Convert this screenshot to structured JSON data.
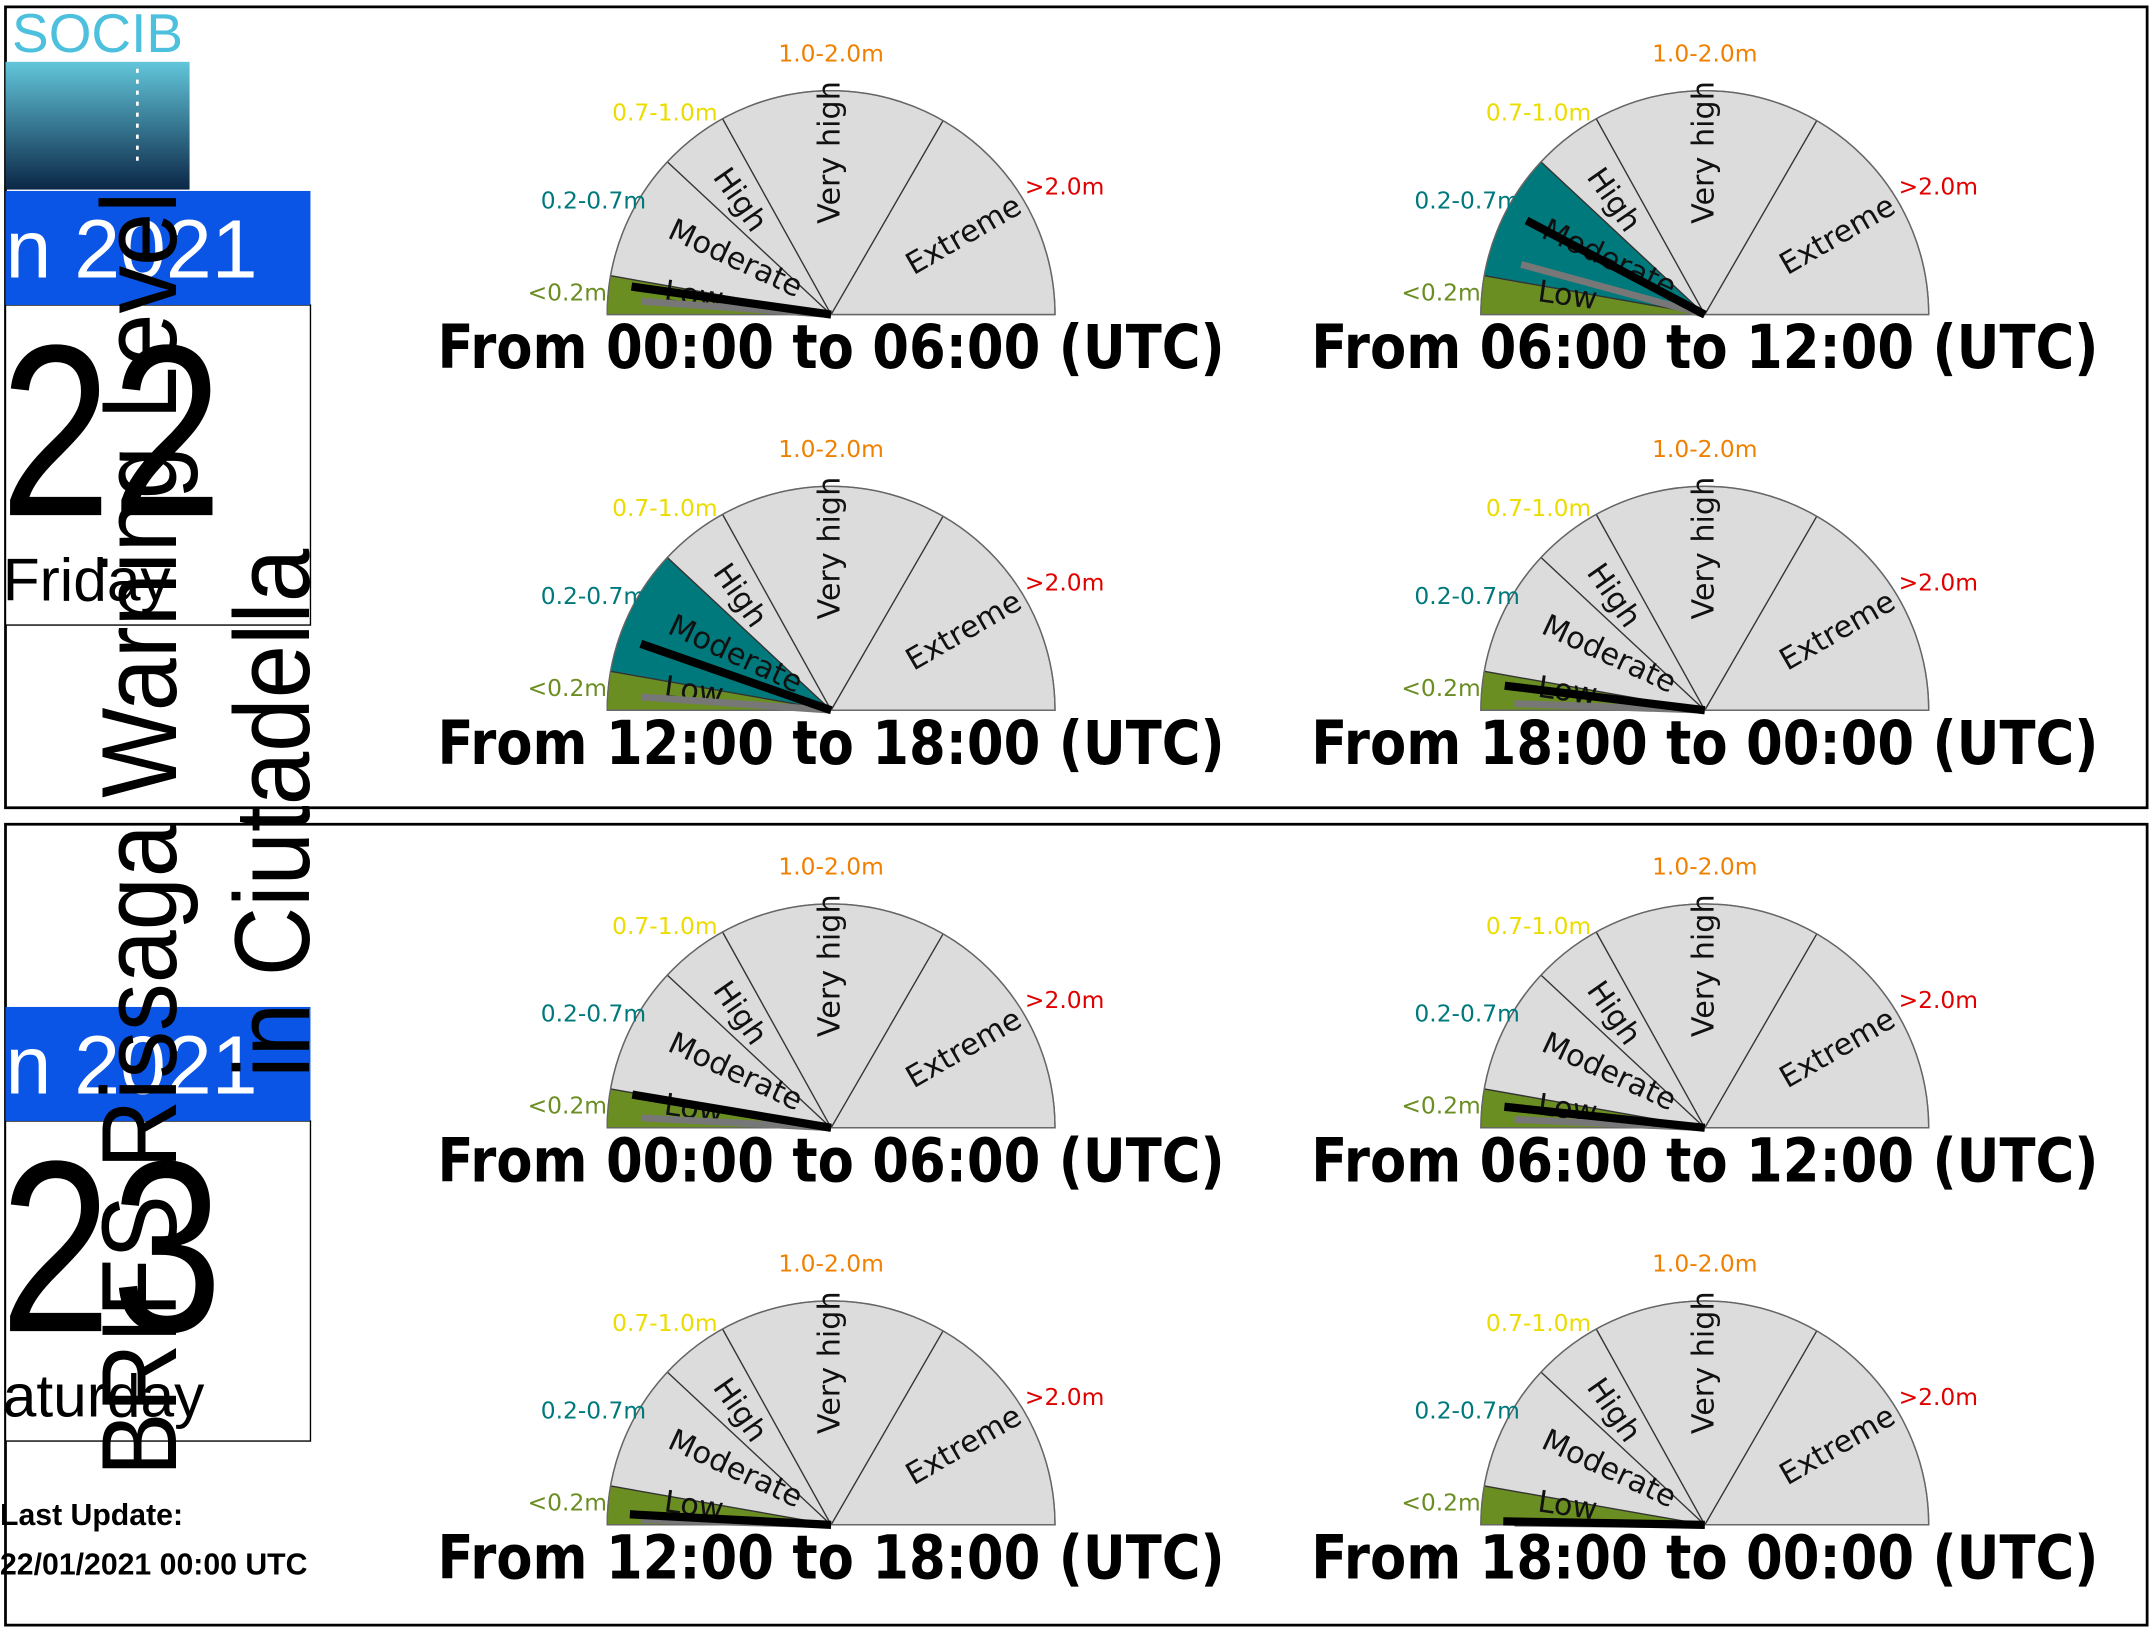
{
  "logo": "SOCIB",
  "title": [
    "BRIFS Rissaga Warning Level",
    "in Ciutadella"
  ],
  "scale": {
    "levels": [
      {
        "name": "Low",
        "range": "<0.2m",
        "color": "#6b8e23"
      },
      {
        "name": "Moderate",
        "range": "0.2-0.7m",
        "color": "#00797c"
      },
      {
        "name": "High",
        "range": "0.7-1.0m",
        "color": "#ecdc00"
      },
      {
        "name": "Very high",
        "range": "1.0-2.0m",
        "color": "#f08000"
      },
      {
        "name": "Extreme",
        "range": ">2.0m",
        "color": "#e00000"
      }
    ],
    "needle_colors": [
      "#000000",
      "#777777"
    ]
  },
  "days": [
    {
      "month": "n 2021",
      "day": "22",
      "weekday": "Friday",
      "gauges": [
        {
          "caption": "From 00:00 to 06:00 (UTC)",
          "needles": [
            0.16,
            0.08
          ]
        },
        {
          "caption": "From 06:00 to 12:00 (UTC)",
          "needles": [
            0.47,
            0.28
          ]
        },
        {
          "caption": "From 12:00 to 18:00 (UTC)",
          "needles": [
            0.34,
            0.08
          ]
        },
        {
          "caption": "From 18:00 to 00:00 (UTC)",
          "needles": [
            0.14,
            0.04
          ]
        }
      ]
    },
    {
      "month": "n 2021",
      "day": "23",
      "weekday": "aturday",
      "gauges": [
        {
          "caption": "From 00:00 to 06:00 (UTC)",
          "needles": [
            0.19,
            0.06
          ]
        },
        {
          "caption": "From 06:00 to 12:00 (UTC)",
          "needles": [
            0.12,
            0.05
          ]
        },
        {
          "caption": "From 12:00 to 18:00 (UTC)",
          "needles": [
            0.06,
            0.03
          ]
        },
        {
          "caption": "From 18:00 to 00:00 (UTC)",
          "needles": [
            0.02,
            0.01
          ]
        }
      ]
    }
  ],
  "last_update": {
    "label": "Last Update:",
    "value": "22/01/2021 00:00 UTC"
  }
}
